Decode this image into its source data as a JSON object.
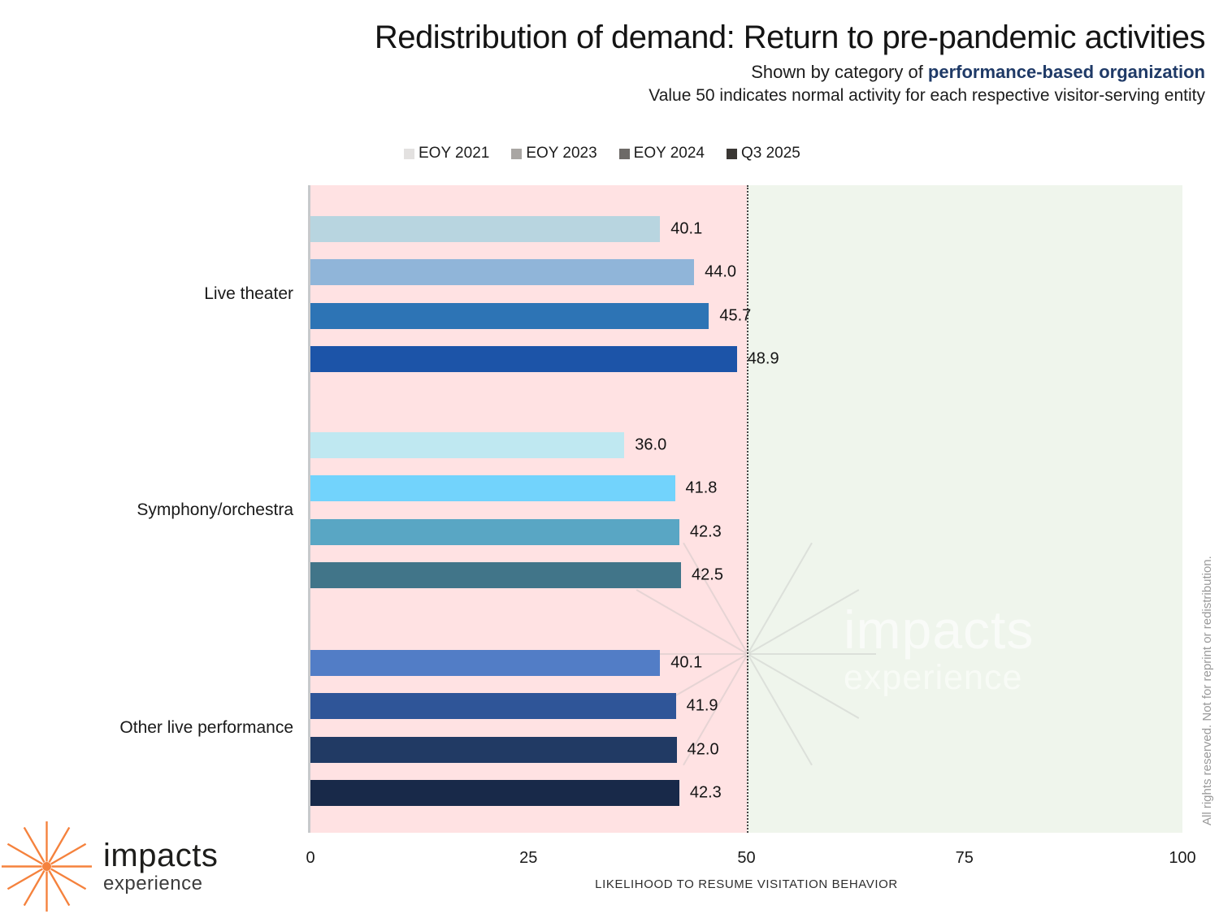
{
  "header": {
    "title": "Redistribution of demand: Return to pre-pandemic activities",
    "subtitle_prefix": "Shown by category of ",
    "subtitle_highlight": "performance-based organization",
    "subtitle_note": "Value 50 indicates normal activity for each respective visitor-serving entity"
  },
  "chart_data": {
    "type": "bar",
    "orientation": "horizontal",
    "xlabel": "LIKELIHOOD TO RESUME VISITATION BEHAVIOR",
    "xlim": [
      0,
      100
    ],
    "xticks": [
      "0",
      "25",
      "50",
      "75",
      "100"
    ],
    "reference_line": 50,
    "grid": false,
    "legend_position": "top",
    "zones": [
      {
        "from": 0,
        "to": 50,
        "color": "#ffe2e3"
      },
      {
        "from": 50,
        "to": 100,
        "color": "#eff5ec"
      }
    ],
    "legend": [
      {
        "label": "EOY 2021",
        "color": "#e3e1e0"
      },
      {
        "label": "EOY 2023",
        "color": "#a9a6a3"
      },
      {
        "label": "EOY 2024",
        "color": "#6d6a67"
      },
      {
        "label": "Q3 2025",
        "color": "#3a3734"
      }
    ],
    "categories": [
      "Live theater",
      "Symphony/orchestra",
      "Other live performance"
    ],
    "series": [
      "EOY 2021",
      "EOY 2023",
      "EOY 2024",
      "Q3 2025"
    ],
    "groups": [
      {
        "category": "Live theater",
        "bars": [
          {
            "series": "EOY 2021",
            "value": 40.1,
            "label": "40.1",
            "color": "#b8d5e0"
          },
          {
            "series": "EOY 2023",
            "value": 44.0,
            "label": "44.0",
            "color": "#90b5d9"
          },
          {
            "series": "EOY 2024",
            "value": 45.7,
            "label": "45.7",
            "color": "#2d74b5"
          },
          {
            "series": "Q3 2025",
            "value": 48.9,
            "label": "48.9",
            "color": "#1c54a8"
          }
        ]
      },
      {
        "category": "Symphony/orchestra",
        "bars": [
          {
            "series": "EOY 2021",
            "value": 36.0,
            "label": "36.0",
            "color": "#bfe8f1"
          },
          {
            "series": "EOY 2023",
            "value": 41.8,
            "label": "41.8",
            "color": "#72d3fc"
          },
          {
            "series": "EOY 2024",
            "value": 42.3,
            "label": "42.3",
            "color": "#59a6c4"
          },
          {
            "series": "Q3 2025",
            "value": 42.5,
            "label": "42.5",
            "color": "#417589"
          }
        ]
      },
      {
        "category": "Other live performance",
        "bars": [
          {
            "series": "EOY 2021",
            "value": 40.1,
            "label": "40.1",
            "color": "#527dc6"
          },
          {
            "series": "EOY 2023",
            "value": 41.9,
            "label": "41.9",
            "color": "#2f5598"
          },
          {
            "series": "EOY 2024",
            "value": 42.0,
            "label": "42.0",
            "color": "#213a64"
          },
          {
            "series": "Q3 2025",
            "value": 42.3,
            "label": "42.3",
            "color": "#182949"
          }
        ]
      }
    ]
  },
  "watermark": {
    "line1": "impacts",
    "line2": "experience"
  },
  "logo": {
    "name": "impacts",
    "tagline": "experience",
    "accent_color": "#f5823d"
  },
  "footer_note": "All rights reserved. Not for reprint or redistribution."
}
